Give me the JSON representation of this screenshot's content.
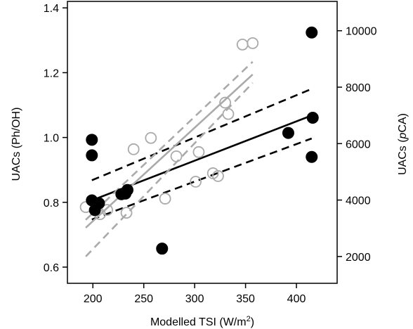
{
  "chart_data": {
    "type": "scatter",
    "title": "",
    "xlabel": {
      "main": "Modelled TSI (W/m",
      "sup": "2",
      "tail": ")"
    },
    "ylabel_left": "UACs (Ph/OH)",
    "ylabel_right": {
      "pre": "UACs (",
      "ital": "p",
      "post": "CA)"
    },
    "xlim": [
      175,
      440
    ],
    "ylim_left": [
      0.55,
      1.42
    ],
    "ylim_right": [
      1050,
      11039
    ],
    "x_ticks": [
      200,
      250,
      300,
      350,
      400
    ],
    "y_left_ticks": [
      0.6,
      0.8,
      1.0,
      1.2,
      1.4
    ],
    "y_left_tick_labels": [
      "0.6",
      "0.8",
      "1.0",
      "1.2",
      "1.4"
    ],
    "y_right_ticks": [
      2000,
      4000,
      6000,
      8000,
      10000
    ],
    "y_right_tick_labels": [
      "2000",
      "4000",
      "6000",
      "8000",
      "10000"
    ],
    "grid": false,
    "legend": "none",
    "colors": {
      "ph_oh": "#000000",
      "pca": "#aaaaaa"
    },
    "series": [
      {
        "axis": "left",
        "marker": "filled-circle",
        "points": [
          [
            199,
            0.993
          ],
          [
            199,
            0.945
          ],
          [
            199,
            0.806
          ],
          [
            202,
            0.776
          ],
          [
            206,
            0.797
          ],
          [
            228,
            0.825
          ],
          [
            232,
            0.827
          ],
          [
            234,
            0.838
          ],
          [
            268,
            0.657
          ],
          [
            392,
            1.014
          ],
          [
            415,
            1.324
          ],
          [
            416,
            1.061
          ],
          [
            415,
            0.94
          ]
        ]
      },
      {
        "axis": "right",
        "marker": "open-circle",
        "points": [
          [
            193,
            3750
          ],
          [
            207,
            3500
          ],
          [
            214,
            3650
          ],
          [
            233,
            3550
          ],
          [
            240,
            5800
          ],
          [
            257,
            6200
          ],
          [
            271,
            4050
          ],
          [
            282,
            5550
          ],
          [
            301,
            4650
          ],
          [
            304,
            5700
          ],
          [
            318,
            4950
          ],
          [
            323,
            4850
          ],
          [
            330,
            7450
          ],
          [
            333,
            7050
          ],
          [
            347,
            9510
          ],
          [
            357,
            9560
          ]
        ]
      }
    ],
    "fits": [
      {
        "axis": "left",
        "style": "solid",
        "from": [
          199,
          0.806
        ],
        "to": [
          415,
          1.068
        ]
      },
      {
        "axis": "left",
        "style": "dashed",
        "from": [
          199,
          0.868
        ],
        "to": [
          415,
          1.15
        ]
      },
      {
        "axis": "left",
        "style": "dashed",
        "from": [
          199,
          0.747
        ],
        "to": [
          415,
          0.997
        ]
      },
      {
        "axis": "right",
        "style": "solid",
        "from": [
          193,
          3020
        ],
        "to": [
          357,
          8450
        ]
      },
      {
        "axis": "right",
        "style": "dashed",
        "from": [
          193,
          3300
        ],
        "to": [
          357,
          8900
        ]
      },
      {
        "axis": "right",
        "style": "dashed",
        "from": [
          193,
          2000
        ],
        "to": [
          357,
          8150
        ]
      }
    ]
  }
}
